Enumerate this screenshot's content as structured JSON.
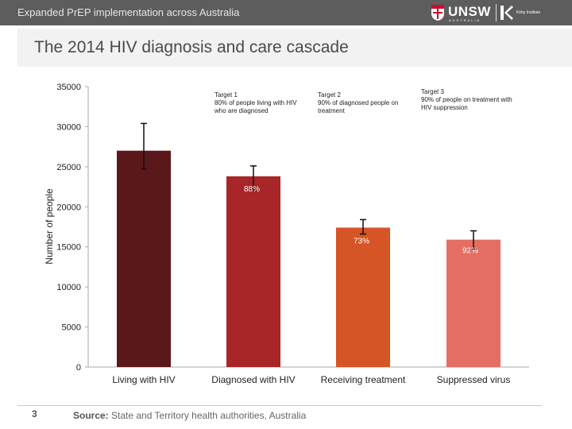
{
  "header": {
    "title": "Expanded PrEP implementation across Australia",
    "logo_text": "UNSW",
    "logo_subtext": "AUSTRALIA",
    "kirby_text": "Kirby Institute"
  },
  "slide": {
    "title": "The 2014 HIV diagnosis and care cascade",
    "page_number": "3",
    "source_label": "Source:",
    "source_text": " State and Territory health authorities, Australia"
  },
  "colors": {
    "bar1": "#5a181b",
    "bar2": "#a82628",
    "bar3": "#d55527",
    "bar4": "#e46e62",
    "header": "#5d5d5d"
  },
  "chart_data": {
    "type": "bar",
    "title": "",
    "xlabel": "",
    "ylabel": "Number of people",
    "ylim": [
      0,
      35000
    ],
    "yticks": [
      0,
      5000,
      10000,
      15000,
      20000,
      25000,
      30000,
      35000
    ],
    "categories": [
      "Living with HIV",
      "Diagnosed with HIV",
      "Receiving treatment",
      "Suppressed virus"
    ],
    "values": [
      27000,
      23800,
      17400,
      15900
    ],
    "error_low": [
      24700,
      22200,
      16600,
      14700
    ],
    "error_high": [
      30400,
      25100,
      18400,
      17000
    ],
    "bar_labels": [
      "",
      "88%",
      "73%",
      "92%"
    ],
    "annotations": [
      {
        "line1": "Target 1",
        "line2": "80% of people living with HIV",
        "line3": "who are diagnosed"
      },
      {
        "line1": "Target 2",
        "line2": "90% of diagnosed people on",
        "line3": "treatment"
      },
      {
        "line1": "Target 3",
        "line2": "90% of people on treatment with",
        "line3": "HIV suppression"
      }
    ],
    "grid": false,
    "legend": "none"
  }
}
